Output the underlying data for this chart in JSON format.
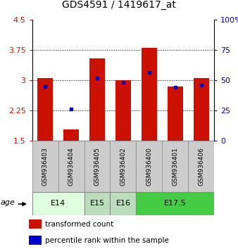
{
  "title": "GDS4591 / 1419617_at",
  "samples": [
    "GSM936403",
    "GSM936404",
    "GSM936405",
    "GSM936402",
    "GSM936400",
    "GSM936401",
    "GSM936406"
  ],
  "transformed_count": [
    3.05,
    1.78,
    3.55,
    3.0,
    3.8,
    2.85,
    3.05
  ],
  "percentile_rank": [
    2.85,
    2.28,
    3.05,
    2.95,
    3.2,
    2.82,
    2.88
  ],
  "ylim": [
    1.5,
    4.5
  ],
  "yticks": [
    1.5,
    2.25,
    3.0,
    3.75,
    4.5
  ],
  "ytick_labels": [
    "1.5",
    "2.25",
    "3",
    "3.75",
    "4.5"
  ],
  "right_yticks": [
    0,
    25,
    50,
    75,
    100
  ],
  "right_ytick_labels": [
    "0",
    "25",
    "50",
    "75",
    "100%"
  ],
  "bar_color": "#cc1100",
  "dot_color": "#0000cc",
  "age_groups": [
    {
      "label": "E14",
      "samples": [
        0,
        1
      ],
      "color": "#ddffdd"
    },
    {
      "label": "E15",
      "samples": [
        2
      ],
      "color": "#bbddbb"
    },
    {
      "label": "E16",
      "samples": [
        3
      ],
      "color": "#bbddbb"
    },
    {
      "label": "E17.5",
      "samples": [
        4,
        5,
        6
      ],
      "color": "#44cc44"
    }
  ],
  "age_label": "age",
  "legend_items": [
    {
      "color": "#cc1100",
      "label": "transformed count"
    },
    {
      "color": "#0000cc",
      "label": "percentile rank within the sample"
    }
  ]
}
